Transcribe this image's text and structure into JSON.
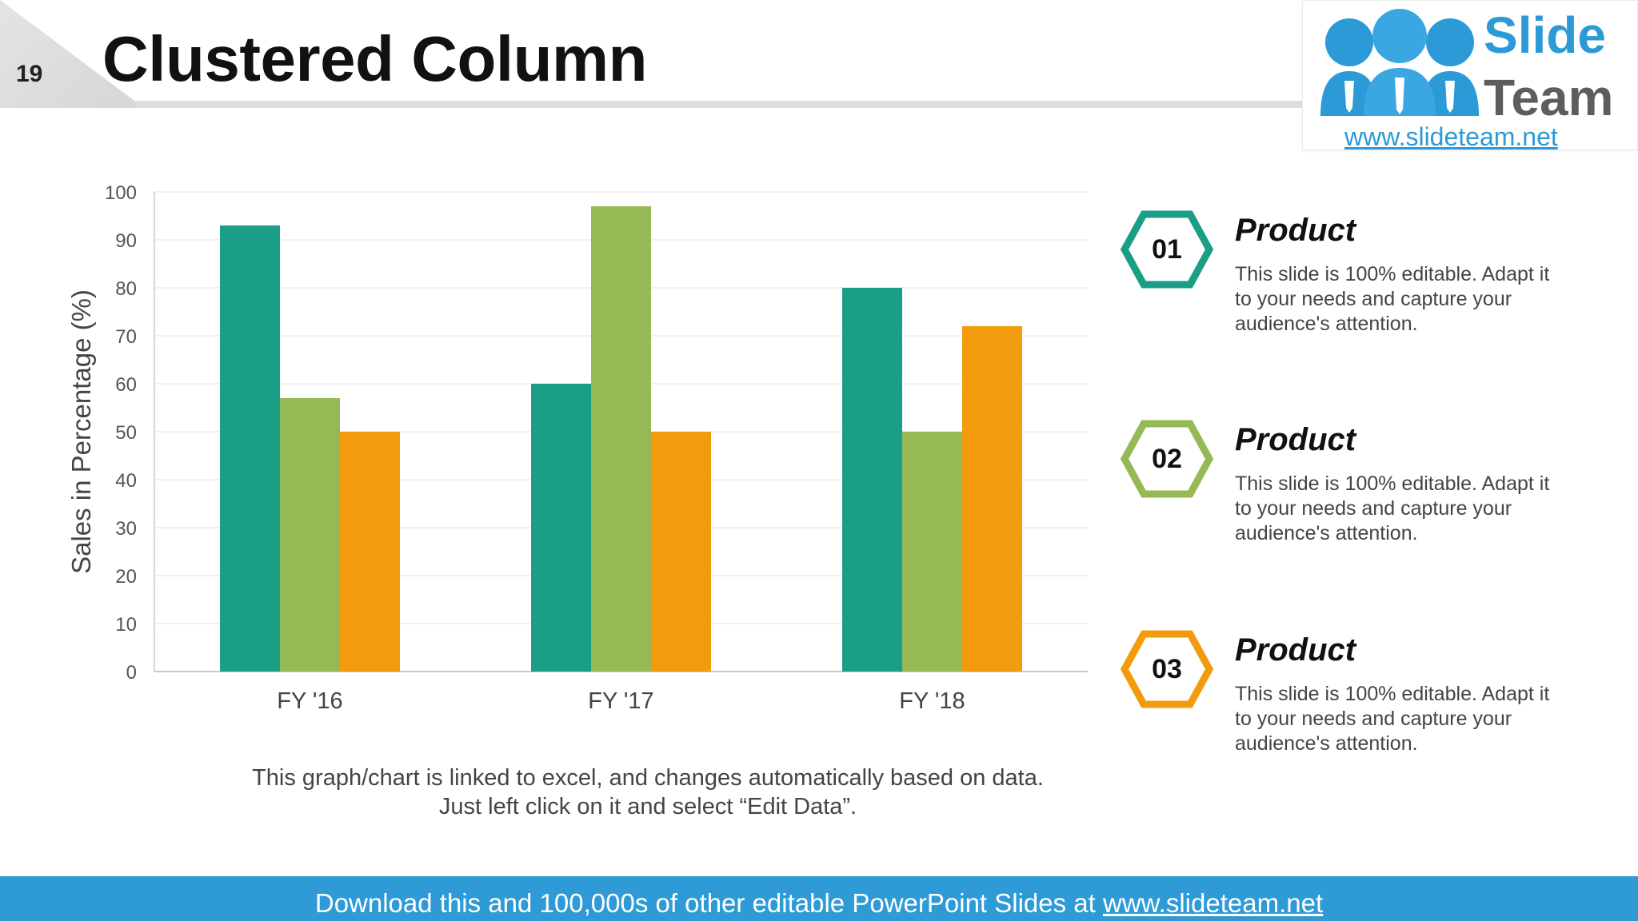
{
  "slide": {
    "number": "19",
    "title": "Clustered Column"
  },
  "logo": {
    "word1": "Slide",
    "word2": "Team",
    "url": "www.slideteam.net"
  },
  "colors": {
    "teal": "#1b9e86",
    "green": "#94b955",
    "orange": "#f29b0c",
    "footer": "#2e9ad6"
  },
  "chart_data": {
    "type": "bar",
    "categories": [
      "FY '16",
      "FY '17",
      "FY '18"
    ],
    "series": [
      {
        "color": "#1b9e86",
        "values": [
          93,
          60,
          80
        ]
      },
      {
        "color": "#94b955",
        "values": [
          57,
          97,
          50
        ]
      },
      {
        "color": "#f29b0c",
        "values": [
          50,
          50,
          72
        ]
      }
    ],
    "ylabel": "Sales in Percentage (%)",
    "ylim": [
      0,
      100
    ],
    "yticks": [
      "0",
      "10",
      "20",
      "30",
      "40",
      "50",
      "60",
      "70",
      "80",
      "90",
      "100"
    ],
    "grid": true,
    "legend": "none"
  },
  "chart_note": "This graph/chart is linked to excel, and changes automatically based on data. Just left click on it and select “Edit Data”.",
  "products": [
    {
      "num": "01",
      "color": "#1b9e86",
      "title": "Product",
      "desc": "This slide is 100% editable. Adapt it to your needs and capture your audience's attention."
    },
    {
      "num": "02",
      "color": "#94b955",
      "title": "Product",
      "desc": "This slide is 100% editable. Adapt it to your needs and capture your audience's attention."
    },
    {
      "num": "03",
      "color": "#f29b0c",
      "title": "Product",
      "desc": "This slide is 100% editable. Adapt it to your needs and capture your audience's attention."
    }
  ],
  "footer": {
    "text": "Download this and 100,000s of other editable PowerPoint Slides at ",
    "link": "www.slideteam.net"
  }
}
